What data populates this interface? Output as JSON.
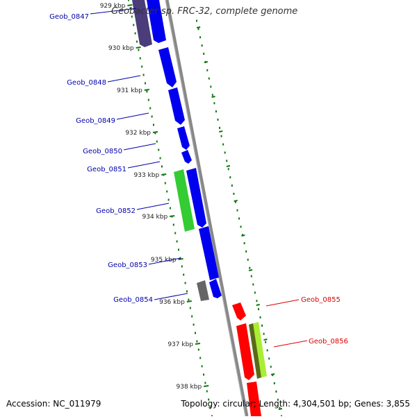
{
  "title": "Geobacter sp. FRC-32, complete genome",
  "accession_label": "Accession: NC_011979",
  "topology_label": "Topology: circular; Length: 4,304,501 bp; Genes: 3,855",
  "colors": {
    "blue": "#0000ee",
    "dark_purple": "#4b3c7a",
    "green": "#33cc33",
    "red": "#ff0000",
    "lime": "#aaee33",
    "olive": "#5a6a1a",
    "gray": "#666666",
    "tick_green": "#117711",
    "backbone": "#888888",
    "label_blue": "#0000aa",
    "label_red": "#dd0000"
  },
  "ticks": [
    {
      "kbp": 929,
      "label": "929 kbp"
    },
    {
      "kbp": 930,
      "label": "930 kbp"
    },
    {
      "kbp": 931,
      "label": "931 kbp"
    },
    {
      "kbp": 932,
      "label": "932 kbp"
    },
    {
      "kbp": 933,
      "label": "933 kbp"
    },
    {
      "kbp": 934,
      "label": "934 kbp"
    },
    {
      "kbp": 935,
      "label": "935 kbp"
    },
    {
      "kbp": 936,
      "label": "936 kbp"
    },
    {
      "kbp": 937,
      "label": "937 kbp"
    },
    {
      "kbp": 938,
      "label": "938 kbp"
    }
  ],
  "genes_left": [
    {
      "name": "Geob_0847"
    },
    {
      "name": "Geob_0848"
    },
    {
      "name": "Geob_0849"
    },
    {
      "name": "Geob_0850"
    },
    {
      "name": "Geob_0851"
    },
    {
      "name": "Geob_0852"
    },
    {
      "name": "Geob_0853"
    },
    {
      "name": "Geob_0854"
    }
  ],
  "genes_right": [
    {
      "name": "Geob_0855"
    },
    {
      "name": "Geob_0856"
    }
  ]
}
